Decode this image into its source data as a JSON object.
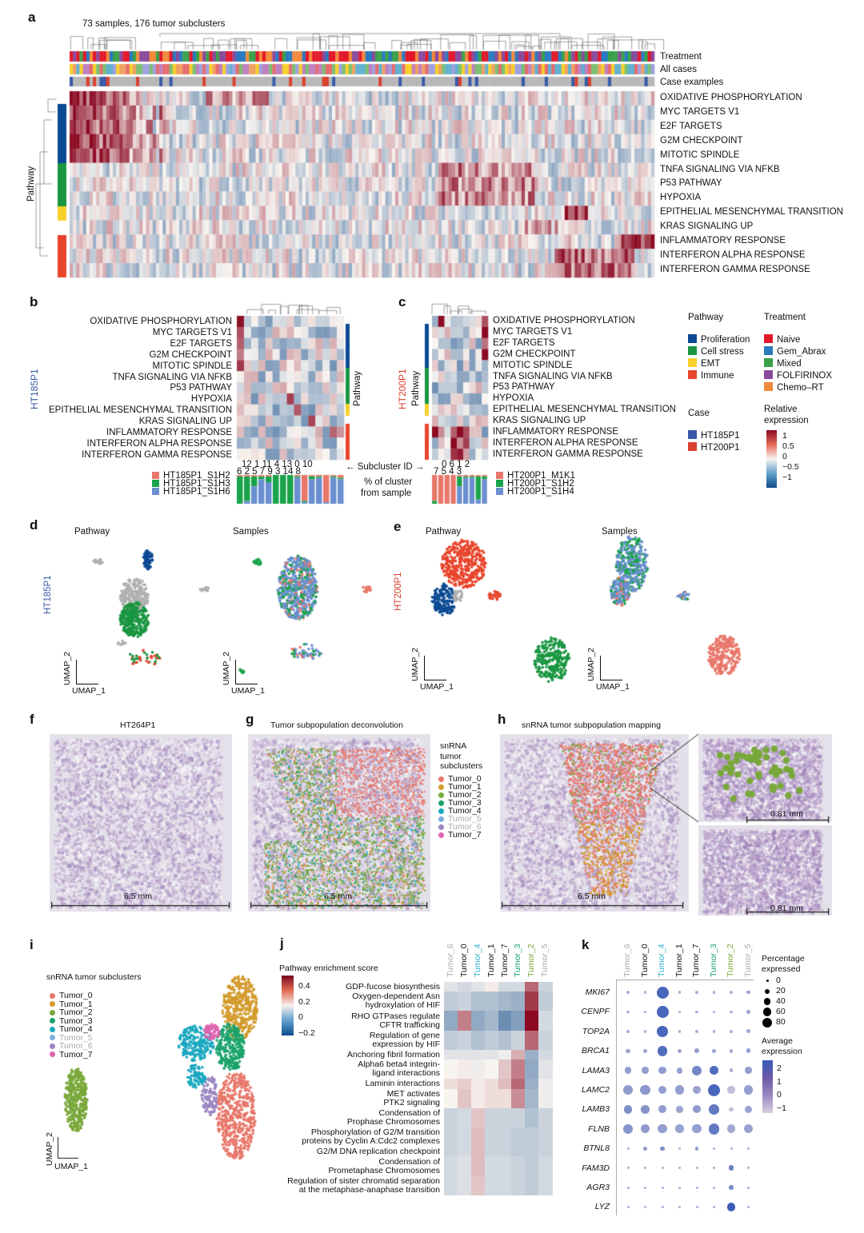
{
  "colors": {
    "proliferation": "#0b4a93",
    "cell_stress": "#1a9641",
    "emt": "#f7d02c",
    "immune": "#e8452c",
    "naive": "#e2182b",
    "gem_abrax": "#2a7ac0",
    "mixed": "#3aa14a",
    "folfirinox": "#8a4a9c",
    "chemo_rt": "#f28a3c",
    "ht185p1": "#3a5aa8",
    "ht200p1": "#d9412f"
  },
  "a": {
    "label": "a",
    "title": "73 samples, 176 tumor subclusters",
    "annotations": [
      "Treatment",
      "All cases",
      "Case examples"
    ],
    "axis_label": "Pathway",
    "rows": [
      "OXIDATIVE PHOSPHORYLATION",
      "MYC TARGETS V1",
      "E2F TARGETS",
      "G2M CHECKPOINT",
      "MITOTIC SPINDLE",
      "TNFA SIGNALING VIA NFKB",
      "P53 PATHWAY",
      "HYPOXIA",
      "EPITHELIAL MESENCHYMAL TRANSITION",
      "KRAS SIGNALING UP",
      "INFLAMMATORY RESPONSE",
      "INTERFERON ALPHA RESPONSE",
      "INTERFERON GAMMA RESPONSE"
    ]
  },
  "b": {
    "label": "b",
    "sample": "HT185P1",
    "axis_label": "Pathway",
    "rows": [
      "OXIDATIVE PHOSPHORYLATION",
      "MYC TARGETS V1",
      "E2F TARGETS",
      "G2M CHECKPOINT",
      "MITOTIC SPINDLE",
      "TNFA SIGNALING VIA NFKB",
      "P53 PATHWAY",
      "HYPOXIA",
      "EPITHELIAL MESENCHYMAL TRANSITION",
      "KRAS SIGNALING UP",
      "INFLAMMATORY RESPONSE",
      "INTERFERON ALPHA RESPONSE",
      "INTERFERON GAMMA RESPONSE"
    ],
    "ids_top": "12   1   11   4   13   0   10",
    "ids_bottom": "6   2   5   7   9   3   14   8",
    "subcluster_label": "← Subcluster ID →",
    "pct_label_1": "% of cluster",
    "pct_label_2": "from sample",
    "legend": [
      "HT185P1_S1H2",
      "HT185P1_S1H3",
      "HT185P1_S1H6"
    ]
  },
  "c": {
    "label": "c",
    "sample": "HT200P1",
    "axis_label": "Pathway",
    "ids_top": "0   6   1   2",
    "ids_bottom": "7   5   4   3",
    "legend": [
      "HT200P1_M1K1",
      "HT200P1_S1H2",
      "HT200P1_S1H4"
    ]
  },
  "legend": {
    "pathway_title": "Pathway",
    "pathway": [
      "Proliferation",
      "Cell stress",
      "EMT",
      "Immune"
    ],
    "treatment_title": "Treatment",
    "treatment": [
      "Naive",
      "Gem_Abrax",
      "Mixed",
      "FOLFIRINOX",
      "Chemo–RT"
    ],
    "case_title": "Case",
    "case": [
      "HT185P1",
      "HT200P1"
    ],
    "expr_title_1": "Relative",
    "expr_title_2": "expression",
    "expr_ticks": [
      "1",
      "0.5",
      "0",
      "−0.5",
      "−1"
    ]
  },
  "d": {
    "label": "d",
    "sample": "HT185P1",
    "titles": [
      "Pathway",
      "Samples"
    ],
    "x_axis": "UMAP_1",
    "y_axis": "UMAP_2"
  },
  "e": {
    "label": "e",
    "sample": "HT200P1",
    "titles": [
      "Pathway",
      "Samples"
    ],
    "x_axis": "UMAP_1",
    "y_axis": "UMAP_2"
  },
  "f": {
    "label": "f",
    "title": "HT264P1",
    "scale": "6.5 mm"
  },
  "g": {
    "label": "g",
    "title": "Tumor subpopulation deconvolution",
    "scale": "6.5 mm",
    "legend_title": [
      "snRNA",
      "tumor",
      "subclusters"
    ]
  },
  "h": {
    "label": "h",
    "title": "snRNA tumor subpopulation mapping",
    "scale": "6.5 mm",
    "inset_scale": "0.81 mm"
  },
  "tumors": [
    {
      "name": "Tumor_0",
      "color": "#e8776a"
    },
    {
      "name": "Tumor_1",
      "color": "#d39a2c"
    },
    {
      "name": "Tumor_2",
      "color": "#79a83a"
    },
    {
      "name": "Tumor_3",
      "color": "#1aa36b"
    },
    {
      "name": "Tumor_4",
      "color": "#1aa8c0"
    },
    {
      "name": "Tumor_5",
      "color": "#7ab0e0"
    },
    {
      "name": "Tumor_6",
      "color": "#9a86c0"
    },
    {
      "name": "Tumor_7",
      "color": "#e064b0"
    }
  ],
  "i": {
    "label": "i",
    "title": "snRNA tumor subclusters",
    "x_axis": "UMAP_1",
    "y_axis": "UMAP_2"
  },
  "chart_data": [
    {
      "type": "heatmap",
      "panel": "j",
      "title": "Pathway enrichment score",
      "colorbar_ticks": [
        "0.4",
        "0.2",
        "0",
        "−0.2"
      ],
      "columns": [
        "Tumor_6",
        "Tumor_0",
        "Tumor_4",
        "Tumor_1",
        "Tumor_7",
        "Tumor_3",
        "Tumor_2",
        "Tumor_5"
      ],
      "column_colors": [
        "#aaaaaa",
        "#111111",
        "#2bb0c8",
        "#111111",
        "#111111",
        "#1aa36b",
        "#79a83a",
        "#aaaaaa"
      ],
      "rows": [
        "GDP-fucose biosynthesis",
        "Oxygen-dependent Asn\nhydroxylation of HIF",
        "RHO GTPases regulate\nCFTR trafficking",
        "Regulation of gene\nexpression by HIF",
        "Anchoring fibril formation",
        "Alpha6 beta4 integrin-\nligand interactions",
        "Laminin interactions",
        "MET activates\nPTK2 signaling",
        "Condensation of\nProphase Chromosomes",
        "Phosphorylation of G2/M transition\nproteins by Cyclin A:Cdc2 complexes",
        "G2/M DNA replication checkpoint",
        "Condensation of\nPrometaphase Chromosomes",
        "Regulation of sister chromatid separation\nat the metaphase-anaphase transition"
      ],
      "values": [
        [
          -0.05,
          -0.08,
          -0.05,
          0.02,
          -0.08,
          -0.08,
          0.3,
          -0.1
        ],
        [
          -0.12,
          -0.1,
          -0.15,
          -0.15,
          -0.18,
          -0.2,
          0.4,
          -0.12
        ],
        [
          -0.22,
          0.25,
          -0.22,
          -0.18,
          -0.3,
          -0.25,
          0.5,
          -0.08
        ],
        [
          -0.12,
          -0.1,
          -0.15,
          -0.12,
          -0.15,
          -0.1,
          0.3,
          -0.1
        ],
        [
          -0.05,
          -0.05,
          -0.05,
          -0.05,
          -0.02,
          0.15,
          -0.2,
          -0.08
        ],
        [
          0.0,
          0.02,
          -0.02,
          0.0,
          0.1,
          0.25,
          -0.22,
          -0.05
        ],
        [
          0.05,
          0.08,
          0.02,
          0.05,
          0.12,
          0.3,
          -0.2,
          -0.02
        ],
        [
          0.0,
          0.1,
          0.02,
          0.05,
          0.05,
          0.22,
          -0.18,
          -0.02
        ],
        [
          -0.1,
          -0.08,
          0.1,
          -0.1,
          -0.1,
          -0.1,
          -0.15,
          -0.1
        ],
        [
          -0.1,
          -0.08,
          0.12,
          -0.1,
          -0.1,
          -0.12,
          -0.12,
          -0.1
        ],
        [
          -0.1,
          -0.08,
          0.12,
          -0.1,
          -0.1,
          -0.12,
          -0.12,
          -0.1
        ],
        [
          -0.08,
          -0.06,
          0.12,
          -0.08,
          -0.08,
          -0.1,
          -0.12,
          -0.08
        ],
        [
          -0.08,
          -0.06,
          0.1,
          -0.08,
          -0.08,
          -0.1,
          -0.12,
          -0.08
        ]
      ]
    },
    {
      "type": "scatter",
      "subtype": "dotplot",
      "panel": "k",
      "columns": [
        "Tumor_6",
        "Tumor_0",
        "Tumor_4",
        "Tumor_1",
        "Tumor_7",
        "Tumor_3",
        "Tumor_2",
        "Tumor_5"
      ],
      "column_colors": [
        "#aaaaaa",
        "#111111",
        "#2bb0c8",
        "#111111",
        "#111111",
        "#1aa36b",
        "#79a83a",
        "#aaaaaa"
      ],
      "rows": [
        "MKI67",
        "CENPF",
        "TOP2A",
        "BRCA1",
        "LAMA3",
        "LAMC2",
        "LAMB3",
        "FLNB",
        "BTNL8",
        "FAM3D",
        "AGR3",
        "LYZ"
      ],
      "pct": [
        [
          5,
          5,
          80,
          5,
          5,
          5,
          5,
          8
        ],
        [
          5,
          5,
          80,
          5,
          5,
          5,
          5,
          8
        ],
        [
          5,
          5,
          75,
          5,
          5,
          5,
          5,
          8
        ],
        [
          10,
          10,
          60,
          10,
          12,
          10,
          8,
          12
        ],
        [
          25,
          25,
          30,
          22,
          50,
          40,
          8,
          25
        ],
        [
          60,
          55,
          40,
          45,
          40,
          80,
          30,
          50
        ],
        [
          40,
          40,
          35,
          25,
          35,
          55,
          10,
          30
        ],
        [
          50,
          45,
          45,
          40,
          45,
          65,
          40,
          45
        ],
        [
          3,
          8,
          10,
          3,
          8,
          3,
          3,
          3
        ],
        [
          3,
          3,
          3,
          3,
          3,
          3,
          15,
          3
        ],
        [
          3,
          3,
          3,
          3,
          3,
          3,
          10,
          3
        ],
        [
          3,
          3,
          3,
          3,
          3,
          3,
          40,
          3
        ]
      ],
      "expr": [
        [
          0,
          0,
          2.2,
          0,
          0,
          0,
          0,
          0.3
        ],
        [
          0,
          0,
          2.2,
          0,
          0,
          0,
          0,
          0.3
        ],
        [
          0,
          0,
          2.2,
          0,
          0,
          0,
          0,
          0.3
        ],
        [
          0.3,
          0.3,
          2,
          0.3,
          0.5,
          0.4,
          0.1,
          0.5
        ],
        [
          0.5,
          0.5,
          0.6,
          0.4,
          1.2,
          2,
          0,
          0.5
        ],
        [
          0.6,
          0.7,
          0.5,
          0.5,
          0.4,
          2.2,
          -0.5,
          0.5
        ],
        [
          1,
          0.8,
          0.6,
          0.3,
          0.6,
          1.6,
          -0.5,
          0.4
        ],
        [
          0.8,
          0.6,
          0.5,
          0.4,
          0.5,
          1.6,
          0.2,
          0.4
        ],
        [
          0,
          0.6,
          1,
          0,
          0.5,
          0,
          0,
          0
        ],
        [
          0,
          0,
          0,
          0,
          0,
          0,
          1.5,
          0
        ],
        [
          0,
          0,
          0,
          0,
          0,
          0,
          1,
          0
        ],
        [
          0,
          0,
          0,
          0,
          0,
          0,
          2.5,
          0
        ]
      ],
      "size_legend_title": [
        "Percentage",
        "expressed"
      ],
      "size_ticks": [
        "0",
        "20",
        "40",
        "60",
        "80"
      ],
      "color_legend_title": [
        "Average",
        "expression"
      ],
      "color_ticks": [
        "2",
        "1",
        "0",
        "−1"
      ]
    }
  ]
}
